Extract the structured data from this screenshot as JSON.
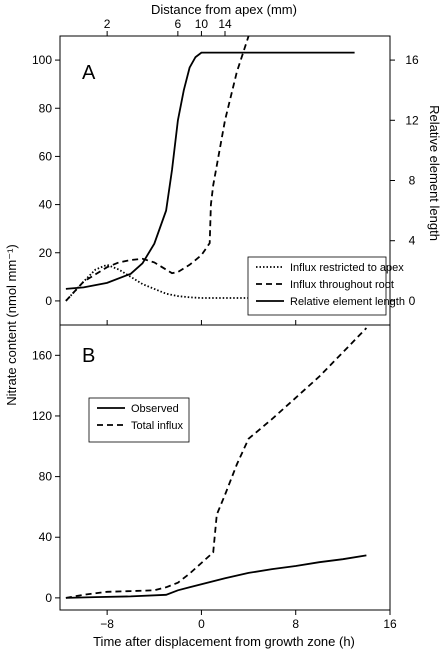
{
  "labels": {
    "top_axis": "Distance from apex (mm)",
    "bottom_axis": "Time after displacement from growth zone (h)",
    "left_axis": "Nitrate content (nmol mm⁻¹)",
    "right_axis": "Relative element length"
  },
  "chart_data": [
    {
      "type": "line",
      "panel": "A",
      "x_range": [
        -12,
        16
      ],
      "x_ticks": [
        "-8",
        "0",
        "8",
        "16"
      ],
      "x_top_ticks": [
        {
          "time": -8,
          "label": "2"
        },
        {
          "time": -2,
          "label": "6"
        },
        {
          "time": 0,
          "label": "10"
        },
        {
          "time": 2,
          "label": "14"
        }
      ],
      "ylim": [
        -10,
        110
      ],
      "y_ticks": [
        "0",
        "20",
        "40",
        "60",
        "80",
        "100"
      ],
      "y2lim": [
        -1.6,
        17.6
      ],
      "y2_ticks": [
        "0",
        "4",
        "8",
        "12",
        "16"
      ],
      "legend_position": "bottom-right",
      "series": [
        {
          "name": "Influx restricted to apex",
          "style": "dotted",
          "axis": "left",
          "points": [
            [
              -11.5,
              0
            ],
            [
              -10,
              8
            ],
            [
              -9,
              13
            ],
            [
              -8,
              15
            ],
            [
              -7,
              13
            ],
            [
              -6,
              10
            ],
            [
              -5,
              7
            ],
            [
              -4,
              5
            ],
            [
              -3,
              3
            ],
            [
              -2,
              2
            ],
            [
              -1,
              1.5
            ],
            [
              0,
              1.2
            ],
            [
              4,
              1.2
            ],
            [
              8,
              1.2
            ],
            [
              13,
              1.2
            ]
          ]
        },
        {
          "name": "Influx throughout root",
          "style": "dashed",
          "axis": "left",
          "points": [
            [
              -11.5,
              0
            ],
            [
              -10,
              8
            ],
            [
              -9,
              11
            ],
            [
              -8,
              14
            ],
            [
              -7,
              16
            ],
            [
              -6,
              17
            ],
            [
              -5,
              17.5
            ],
            [
              -4,
              16
            ],
            [
              -3,
              13
            ],
            [
              -2.5,
              11.5
            ],
            [
              -2,
              12
            ],
            [
              -1,
              15
            ],
            [
              0,
              19
            ],
            [
              0.7,
              24
            ],
            [
              0.8,
              40
            ],
            [
              1,
              48
            ],
            [
              2,
              75
            ],
            [
              3,
              95
            ],
            [
              4,
              110
            ],
            [
              4.5,
              118
            ]
          ]
        },
        {
          "name": "Relative element length",
          "style": "solid",
          "axis": "right",
          "points": [
            [
              -11.5,
              0.8
            ],
            [
              -10,
              0.9
            ],
            [
              -8,
              1.2
            ],
            [
              -6,
              1.8
            ],
            [
              -5,
              2.5
            ],
            [
              -4,
              3.8
            ],
            [
              -3,
              6
            ],
            [
              -2.5,
              8.7
            ],
            [
              -2,
              12
            ],
            [
              -1.5,
              14
            ],
            [
              -1,
              15.5
            ],
            [
              -0.5,
              16.2
            ],
            [
              0,
              16.5
            ],
            [
              1,
              16.5
            ],
            [
              13,
              16.5
            ]
          ]
        }
      ]
    },
    {
      "type": "line",
      "panel": "B",
      "x_range": [
        -12,
        16
      ],
      "x_ticks": [
        "-8",
        "0",
        "8",
        "16"
      ],
      "ylim": [
        -8,
        180
      ],
      "y_ticks": [
        "0",
        "40",
        "80",
        "120",
        "160"
      ],
      "legend_position": "top-left",
      "series": [
        {
          "name": "Observed",
          "style": "solid",
          "points": [
            [
              -11.5,
              0
            ],
            [
              -9,
              0.5
            ],
            [
              -6,
              1
            ],
            [
              -3,
              2
            ],
            [
              -2,
              5
            ],
            [
              -1,
              7
            ],
            [
              0,
              9
            ],
            [
              2,
              13
            ],
            [
              4,
              16.5
            ],
            [
              6,
              19
            ],
            [
              8,
              21
            ],
            [
              10,
              23.5
            ],
            [
              12,
              25.5
            ],
            [
              14,
              28
            ]
          ]
        },
        {
          "name": "Total influx",
          "style": "dashed",
          "points": [
            [
              -11.5,
              0
            ],
            [
              -10,
              2
            ],
            [
              -8,
              4
            ],
            [
              -6,
              4.5
            ],
            [
              -4,
              5
            ],
            [
              -3,
              7
            ],
            [
              -2,
              10
            ],
            [
              -1,
              16
            ],
            [
              0,
              23
            ],
            [
              1,
              30
            ],
            [
              1.3,
              55
            ],
            [
              2,
              68
            ],
            [
              3,
              88
            ],
            [
              4,
              105
            ],
            [
              6,
              118
            ],
            [
              8,
              132
            ],
            [
              10,
              146
            ],
            [
              12,
              162
            ],
            [
              14,
              178
            ]
          ]
        }
      ]
    }
  ]
}
